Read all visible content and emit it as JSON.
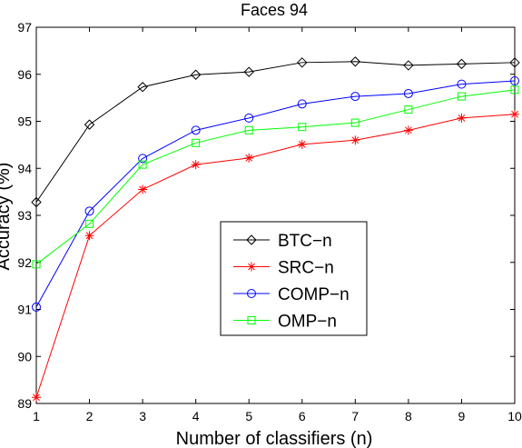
{
  "chart_data": {
    "type": "line",
    "title": "Faces 94",
    "xlabel": "Number of classifiers (n)",
    "ylabel": "Accuracy (%)",
    "xlim": [
      1,
      10
    ],
    "ylim": [
      89,
      97
    ],
    "x": [
      1,
      2,
      3,
      4,
      5,
      6,
      7,
      8,
      9,
      10
    ],
    "xticks": [
      "1",
      "2",
      "3",
      "4",
      "5",
      "6",
      "7",
      "8",
      "9",
      "10"
    ],
    "yticks": [
      "89",
      "90",
      "91",
      "92",
      "93",
      "94",
      "95",
      "96",
      "97"
    ],
    "grid": false,
    "legend_position": "center-left",
    "series": [
      {
        "name": "BTC−n",
        "color": "#000000",
        "marker": "diamond",
        "values": [
          93.28,
          94.93,
          95.73,
          95.99,
          96.05,
          96.25,
          96.27,
          96.19,
          96.22,
          96.25
        ]
      },
      {
        "name": "SRC−n",
        "color": "#ff0000",
        "marker": "star",
        "values": [
          89.13,
          92.57,
          93.55,
          94.08,
          94.22,
          94.51,
          94.6,
          94.81,
          95.07,
          95.15
        ]
      },
      {
        "name": "COMP−n",
        "color": "#0000ff",
        "marker": "circle",
        "values": [
          91.05,
          93.09,
          94.21,
          94.81,
          95.07,
          95.37,
          95.53,
          95.59,
          95.79,
          95.86
        ]
      },
      {
        "name": "OMP−n",
        "color": "#00ff00",
        "marker": "square",
        "values": [
          91.96,
          92.82,
          94.08,
          94.54,
          94.81,
          94.88,
          94.97,
          95.25,
          95.53,
          95.67
        ]
      }
    ]
  }
}
